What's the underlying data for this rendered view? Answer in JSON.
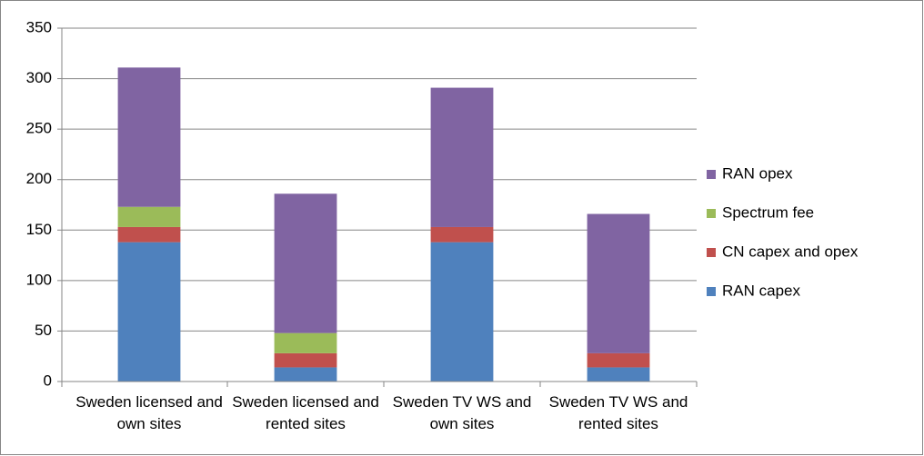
{
  "chart_data": {
    "type": "stacked_bar",
    "categories": [
      "Sweden licensed and own sites",
      "Sweden licensed and rented sites",
      "Sweden TV WS and own sites",
      "Sweden TV WS and rented sites"
    ],
    "series": [
      {
        "name": "RAN capex",
        "color": "#4f81bd",
        "values": [
          138,
          14,
          138,
          14
        ]
      },
      {
        "name": "CN capex and opex",
        "color": "#c0504d",
        "values": [
          15,
          14,
          15,
          14
        ]
      },
      {
        "name": "Spectrum fee",
        "color": "#9bbb59",
        "values": [
          20,
          20,
          0,
          0
        ]
      },
      {
        "name": "RAN opex",
        "color": "#8064a2",
        "values": [
          138,
          138,
          138,
          138
        ]
      }
    ],
    "ylim": [
      0,
      350
    ],
    "yticks": [
      0,
      50,
      100,
      150,
      200,
      250,
      300,
      350
    ],
    "grid": true,
    "legend": "right"
  }
}
